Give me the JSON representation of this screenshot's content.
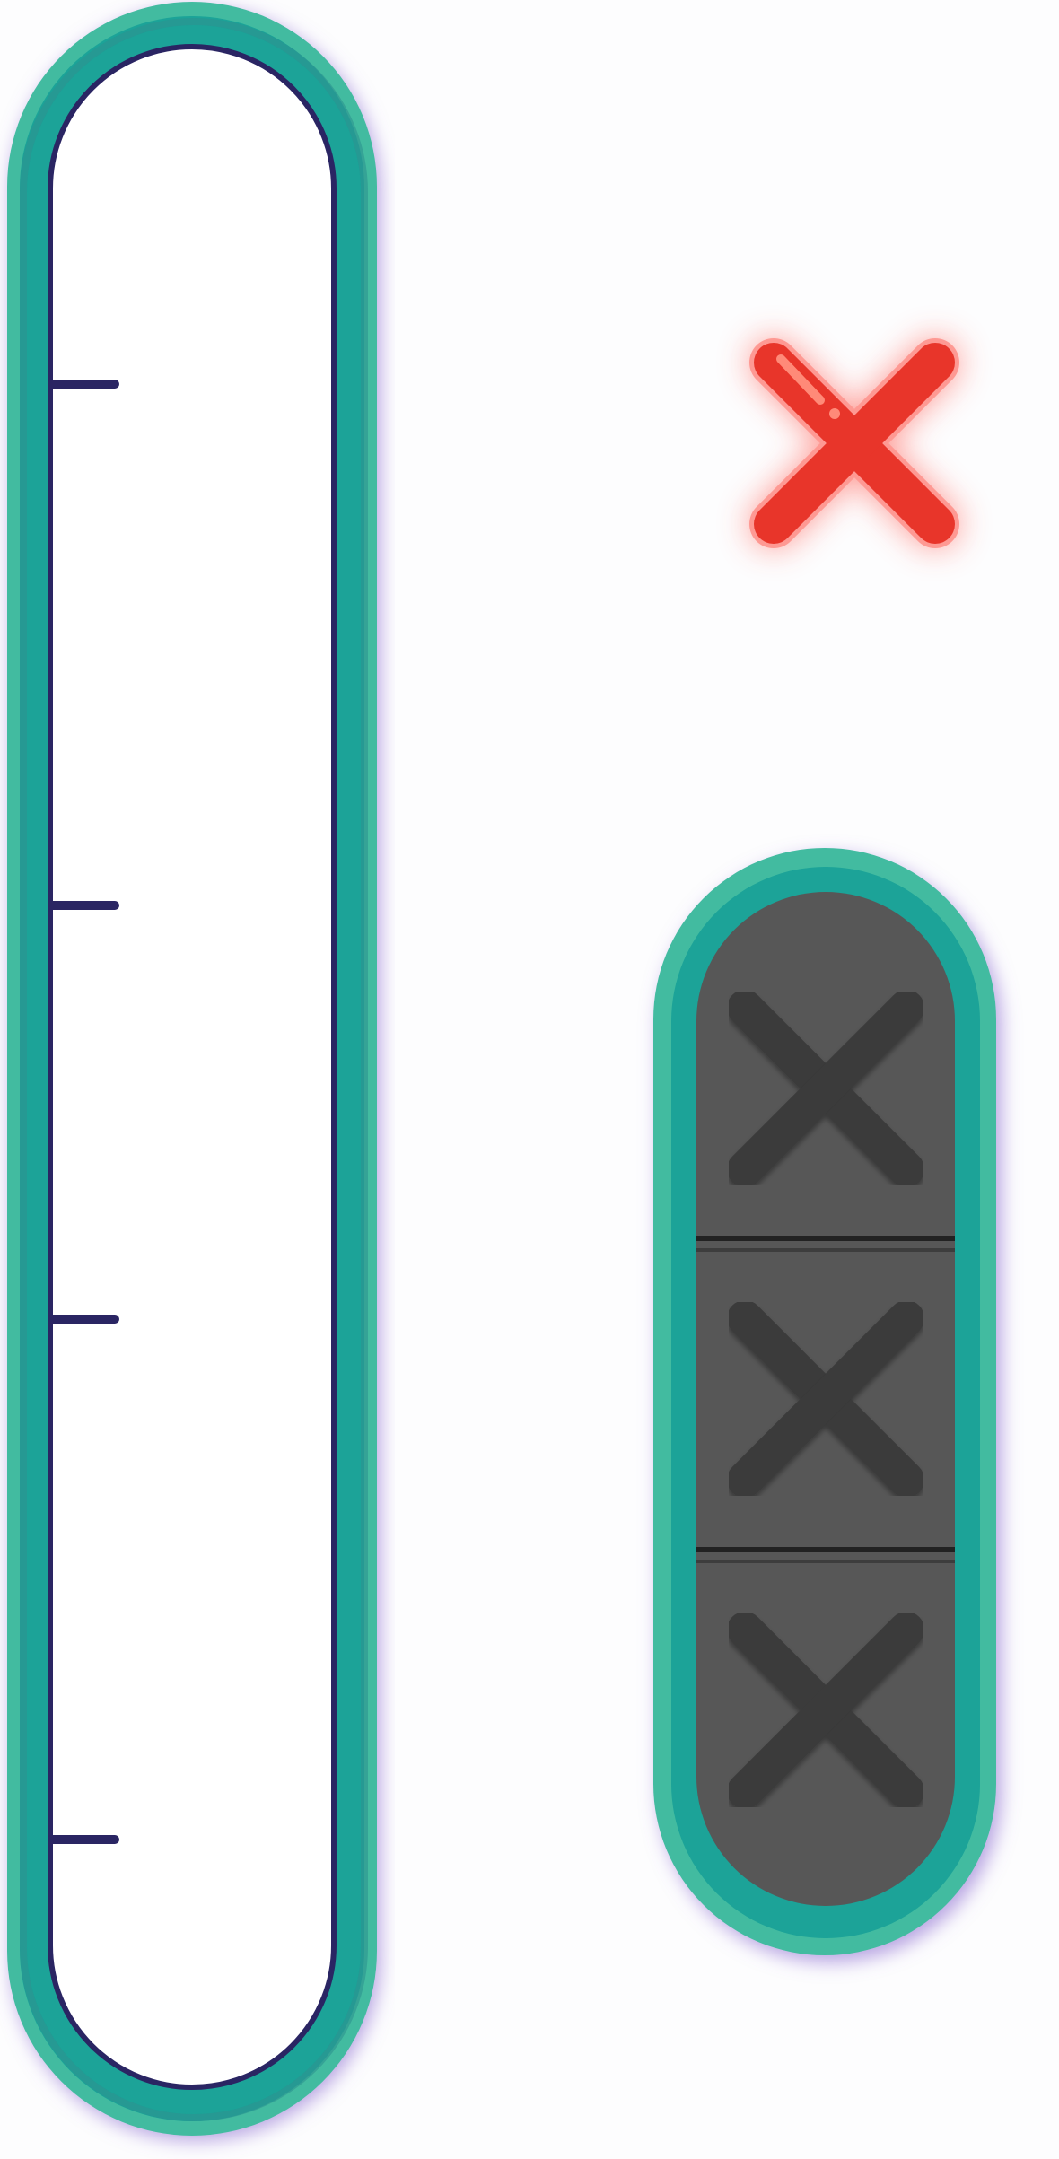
{
  "game": {
    "colors": {
      "background": "#fdfdfe",
      "frame_teal_outer": "#43bba0",
      "frame_teal_mid": "#1aa398",
      "frame_teal_edge": "#2d928f",
      "frame_shadow": "#8a6ad0",
      "meter_outline": "#2a2563",
      "meter_fill": "#ffffff",
      "slot_fill": "#575757",
      "slot_cross": "#3a3a3a",
      "slot_divider": "#222222",
      "strike_red": "#e8352a",
      "strike_glow": "#ff4a3d",
      "strike_highlight": "#ff8a78"
    },
    "meter": {
      "icon": "thermometer-gauge-icon",
      "level": 0,
      "tick_count": 4
    },
    "strike_indicator": {
      "icon": "red-x-strike-icon",
      "active": true
    },
    "strikes_panel": {
      "total_slots": 3,
      "filled_slots": 0,
      "slot_icon": "x-mark-icon"
    }
  }
}
